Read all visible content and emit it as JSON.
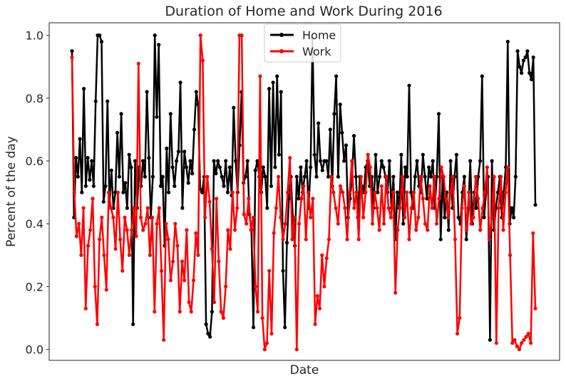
{
  "chart_data": {
    "type": "line",
    "title": "Duration of Home and Work During 2016",
    "xlabel": "Date",
    "ylabel": "Percent of the day",
    "ylim": [
      -0.035,
      1.04
    ],
    "yticks": [
      "0.0",
      "0.2",
      "0.4",
      "0.6",
      "0.8",
      "1.0"
    ],
    "x_tick_labels_shown": false,
    "legend_position": "top-center",
    "series": [
      {
        "name": "Home",
        "color": "#000000",
        "values": [
          0.95,
          0.42,
          0.61,
          0.55,
          0.67,
          0.5,
          0.83,
          0.52,
          0.61,
          0.54,
          0.6,
          0.52,
          0.79,
          1.0,
          1.0,
          0.98,
          0.47,
          0.52,
          0.79,
          0.46,
          0.57,
          0.45,
          0.5,
          0.69,
          0.55,
          0.75,
          0.5,
          0.53,
          0.45,
          0.62,
          0.58,
          0.08,
          0.6,
          0.45,
          0.58,
          0.52,
          0.6,
          0.55,
          0.82,
          0.61,
          0.42,
          0.55,
          1.0,
          0.74,
          0.97,
          0.52,
          0.55,
          0.33,
          0.64,
          0.5,
          0.75,
          0.58,
          0.52,
          0.6,
          0.63,
          0.85,
          0.45,
          0.63,
          0.58,
          0.53,
          0.6,
          0.56,
          0.7,
          0.82,
          0.78,
          0.51,
          0.5,
          0.55,
          0.08,
          0.05,
          0.04,
          0.12,
          0.6,
          0.56,
          0.6,
          0.58,
          0.55,
          0.52,
          0.6,
          0.5,
          0.58,
          0.49,
          0.77,
          0.6,
          0.5,
          0.65,
          0.82,
          0.53,
          0.55,
          0.6,
          0.43,
          0.38,
          0.07,
          0.57,
          0.6,
          0.55,
          0.5,
          0.58,
          0.55,
          0.45,
          0.83,
          0.52,
          0.85,
          0.58,
          0.87,
          0.62,
          0.82,
          0.25,
          0.07,
          0.34,
          0.48,
          0.55,
          0.42,
          0.33,
          0.55,
          0.48,
          0.58,
          0.5,
          0.55,
          0.6,
          0.45,
          0.58,
          0.99,
          0.62,
          0.55,
          0.72,
          0.6,
          0.57,
          0.6,
          0.6,
          0.55,
          0.7,
          0.52,
          0.75,
          0.87,
          0.55,
          0.78,
          0.69,
          0.6,
          0.65,
          0.42,
          0.48,
          0.55,
          0.68,
          0.55,
          0.42,
          0.55,
          0.52,
          0.5,
          0.58,
          0.6,
          0.52,
          0.55,
          0.45,
          0.62,
          0.5,
          0.55,
          0.6,
          0.58,
          0.55,
          0.5,
          0.6,
          0.45,
          0.55,
          0.35,
          0.5,
          0.45,
          0.62,
          0.4,
          0.58,
          0.55,
          0.84,
          0.5,
          0.45,
          0.55,
          0.6,
          0.52,
          0.5,
          0.62,
          0.55,
          0.48,
          0.58,
          0.55,
          0.6,
          0.45,
          0.55,
          0.75,
          0.35,
          0.55,
          0.42,
          0.5,
          0.38,
          0.6,
          0.45,
          0.55,
          0.62,
          0.42,
          0.4,
          0.5,
          0.55,
          0.35,
          0.45,
          0.6,
          0.4,
          0.5,
          0.45,
          0.55,
          0.6,
          0.87,
          0.42,
          0.5,
          0.55,
          0.03,
          0.6,
          0.38,
          0.45,
          0.5,
          0.55,
          0.42,
          0.5,
          0.58,
          0.98,
          0.4,
          0.45,
          0.42,
          0.55,
          0.95,
          0.9,
          0.88,
          0.92,
          0.93,
          0.95,
          0.88,
          0.86,
          0.93,
          0.46
        ]
      },
      {
        "name": "Work",
        "color": "#ff0000",
        "values": [
          0.93,
          0.5,
          0.36,
          0.4,
          0.3,
          0.45,
          0.13,
          0.33,
          0.38,
          0.48,
          0.2,
          0.08,
          0.35,
          0.42,
          0.3,
          0.19,
          0.5,
          0.45,
          0.42,
          0.32,
          0.5,
          0.35,
          0.25,
          0.42,
          0.38,
          0.3,
          0.38,
          0.45,
          0.36,
          0.91,
          0.42,
          0.38,
          0.4,
          0.45,
          0.3,
          0.42,
          0.12,
          0.4,
          0.45,
          0.25,
          0.03,
          0.4,
          0.35,
          0.22,
          0.28,
          0.4,
          0.33,
          0.12,
          0.28,
          0.22,
          0.38,
          0.15,
          0.12,
          0.22,
          0.37,
          0.3,
          1.0,
          0.92,
          0.42,
          0.55,
          0.47,
          0.32,
          0.15,
          0.48,
          0.28,
          0.12,
          0.1,
          0.2,
          0.38,
          0.32,
          0.5,
          0.38,
          0.45,
          1.0,
          1.0,
          0.43,
          0.4,
          0.48,
          0.38,
          0.42,
          0.2,
          0.12,
          0.87,
          0.1,
          0.0,
          0.02,
          0.25,
          0.05,
          0.37,
          0.45,
          0.55,
          0.42,
          0.35,
          0.4,
          0.5,
          0.61,
          0.35,
          0.42,
          0.0,
          0.4,
          0.48,
          0.52,
          0.35,
          0.5,
          0.42,
          0.48,
          0.08,
          0.17,
          0.13,
          0.3,
          0.2,
          0.29,
          0.35,
          0.55,
          0.5,
          0.45,
          0.4,
          0.52,
          0.5,
          0.45,
          0.35,
          0.5,
          0.6,
          0.45,
          0.5,
          0.35,
          0.55,
          0.42,
          0.5,
          0.62,
          0.58,
          0.4,
          0.5,
          0.45,
          0.38,
          0.52,
          0.4,
          0.55,
          0.45,
          0.42,
          0.5,
          0.18,
          0.38,
          0.45,
          0.55,
          0.42,
          0.5,
          0.35,
          0.45,
          0.5,
          0.38,
          0.42,
          0.55,
          0.48,
          0.4,
          0.38,
          0.52,
          0.45,
          0.55,
          0.4,
          0.48,
          0.58,
          0.55,
          0.48,
          0.42,
          0.5,
          0.55,
          0.35,
          0.05,
          0.1,
          0.45,
          0.52,
          0.38,
          0.5,
          0.4,
          0.42,
          0.55,
          0.48,
          0.38,
          0.45,
          0.5,
          0.58,
          0.35,
          0.42,
          0.55,
          0.02,
          0.45,
          0.55,
          0.38,
          0.5,
          0.58,
          0.3,
          0.02,
          0.03,
          0.01,
          0.0,
          0.02,
          0.03,
          0.04,
          0.05,
          0.02,
          0.37,
          0.13
        ]
      }
    ]
  }
}
